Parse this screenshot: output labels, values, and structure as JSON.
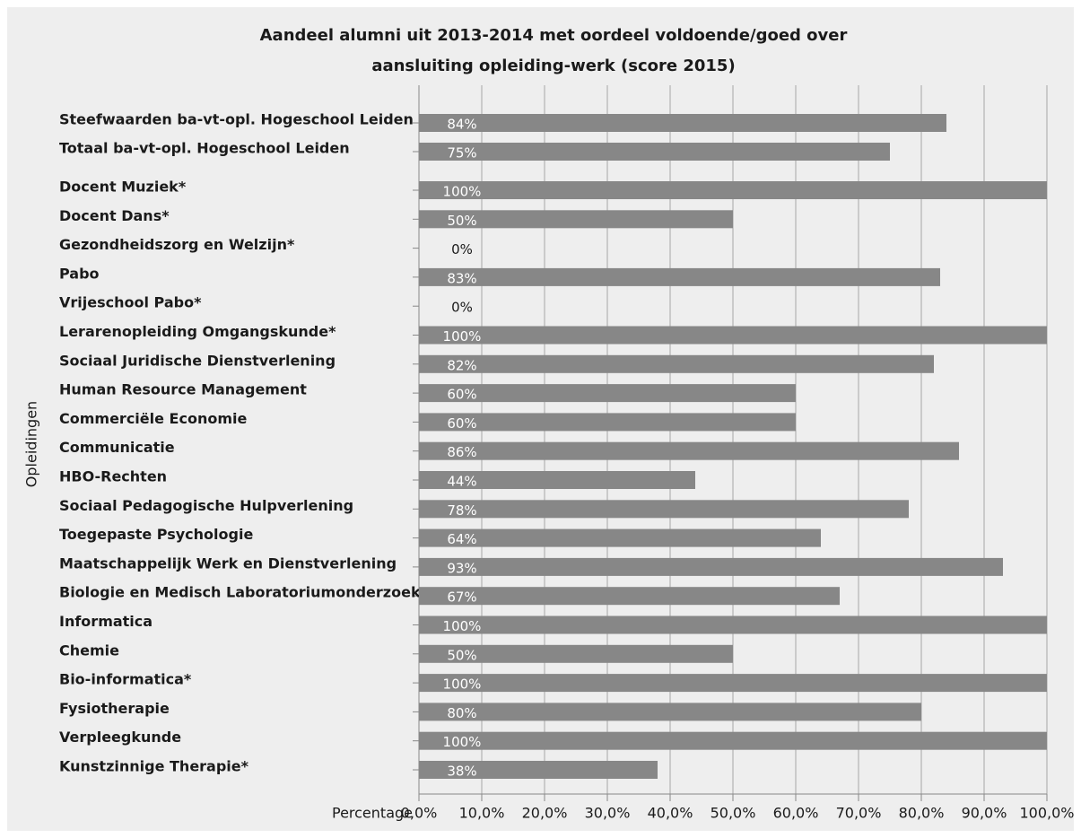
{
  "chart_data": {
    "type": "bar",
    "orientation": "horizontal",
    "title": [
      "Aandeel alumni uit 2013-2014 met oordeel voldoende/goed over",
      "aansluiting opleiding-werk (score 2015)"
    ],
    "x_label": "Percentage",
    "y_label": "Opleidingen",
    "categories": [
      "Steefwaarden ba-vt-opl. Hogeschool Leiden",
      "Totaal ba-vt-opl. Hogeschool Leiden",
      "Docent Muziek*",
      "Docent Dans*",
      "Gezondheidszorg en Welzijn*",
      "Pabo",
      "Vrijeschool Pabo*",
      "Lerarenopleiding Omgangskunde*",
      "Sociaal Juridische Dienstverlening",
      "Human Resource Management",
      "Commerciële Economie",
      "Communicatie",
      "HBO-Rechten",
      "Sociaal Pedagogische Hulpverlening",
      "Toegepaste Psychologie",
      "Maatschappelijk Werk en Dienstverlening",
      "Biologie en Medisch Laboratoriumonderzoek",
      "Informatica",
      "Chemie",
      "Bio-informatica*",
      "Fysiotherapie",
      "Verpleegkunde",
      "Kunstzinnige Therapie*"
    ],
    "values": [
      84,
      75,
      100,
      50,
      0,
      83,
      0,
      100,
      82,
      60,
      60,
      86,
      44,
      78,
      64,
      93,
      67,
      100,
      50,
      100,
      80,
      100,
      38
    ],
    "value_labels": [
      "84%",
      "75%",
      "100%",
      "50%",
      "0%",
      "83%",
      "0%",
      "100%",
      "82%",
      "60%",
      "60%",
      "86%",
      "44%",
      "78%",
      "64%",
      "93%",
      "67%",
      "100%",
      "50%",
      "100%",
      "80%",
      "100%",
      "38%"
    ],
    "color": "#878787",
    "xlim": [
      0,
      100
    ],
    "xticks": [
      {
        "value": 0,
        "label": "0,0%"
      },
      {
        "value": 10,
        "label": "10,0%"
      },
      {
        "value": 20,
        "label": "20,0%"
      },
      {
        "value": 30,
        "label": "30,0%"
      },
      {
        "value": 40,
        "label": "40,0%"
      },
      {
        "value": 50,
        "label": "50,0%"
      },
      {
        "value": 60,
        "label": "60,0%"
      },
      {
        "value": 70,
        "label": "70,0%"
      },
      {
        "value": 80,
        "label": "80,0%"
      },
      {
        "value": 90,
        "label": "90,0%"
      },
      {
        "value": 100,
        "label": "100,0%"
      }
    ],
    "grid": true
  }
}
